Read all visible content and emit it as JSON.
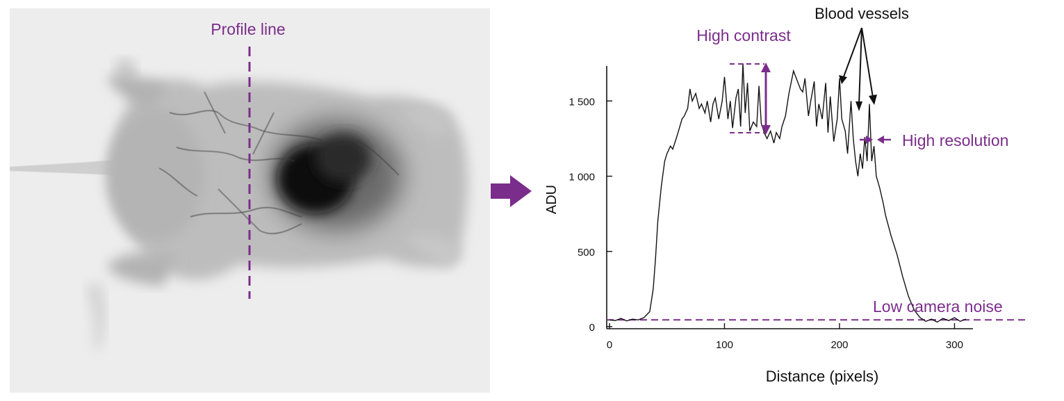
{
  "colors": {
    "accent": "#7b2d8b",
    "line": "#111111",
    "image_background": "#ededed",
    "specimen_dark": "#0e0e0e"
  },
  "image_panel": {
    "profile_label": "Profile line"
  },
  "annotations": {
    "blood_vessels": "Blood vessels",
    "high_contrast": "High contrast",
    "high_resolution": "High resolution",
    "low_noise": "Low camera noise"
  },
  "chart_data": {
    "type": "line",
    "xlabel": "Distance (pixels)",
    "ylabel": "ADU",
    "xlim": [
      0,
      310
    ],
    "ylim": [
      0,
      1700
    ],
    "x_ticks": [
      0,
      100,
      200,
      300
    ],
    "x_tick_labels": [
      "0",
      "100",
      "200",
      "300"
    ],
    "y_ticks": [
      0,
      500,
      1000,
      1500
    ],
    "y_tick_labels": [
      "0",
      "500",
      "1 000",
      "1 500"
    ],
    "grid": false,
    "noise_floor": 45,
    "series": [
      {
        "values_x": [
          0,
          5,
          10,
          15,
          20,
          25,
          30,
          35,
          38,
          40,
          42,
          45,
          48,
          50,
          53,
          55,
          58,
          60,
          63,
          65,
          68,
          70,
          72,
          75,
          78,
          80,
          83,
          85,
          88,
          90,
          92,
          95,
          98,
          100,
          103,
          105,
          107,
          110,
          112,
          114,
          116,
          118,
          120,
          122,
          125,
          128,
          130,
          132,
          135,
          137,
          140,
          143,
          145,
          148,
          150,
          153,
          156,
          160,
          163,
          166,
          168,
          170,
          173,
          175,
          178,
          180,
          182,
          185,
          188,
          190,
          192,
          195,
          198,
          200,
          202,
          205,
          207,
          210,
          212,
          214,
          216,
          218,
          220,
          222,
          224,
          226,
          228,
          230,
          232,
          235,
          238,
          240,
          245,
          250,
          255,
          260,
          265,
          270,
          275,
          280,
          285,
          290,
          295,
          300,
          305,
          310
        ],
        "values_y": [
          45,
          40,
          55,
          38,
          50,
          45,
          60,
          100,
          250,
          450,
          700,
          930,
          1100,
          1150,
          1200,
          1180,
          1250,
          1300,
          1380,
          1400,
          1450,
          1580,
          1500,
          1550,
          1450,
          1480,
          1420,
          1500,
          1360,
          1480,
          1520,
          1380,
          1500,
          1660,
          1380,
          1500,
          1320,
          1520,
          1580,
          1330,
          1750,
          1420,
          1620,
          1300,
          1360,
          1330,
          1600,
          1350,
          1280,
          1250,
          1300,
          1220,
          1290,
          1250,
          1330,
          1400,
          1550,
          1700,
          1640,
          1580,
          1560,
          1650,
          1400,
          1500,
          1630,
          1330,
          1480,
          1380,
          1620,
          1290,
          1530,
          1230,
          1380,
          1650,
          1380,
          1300,
          1150,
          1500,
          1250,
          1100,
          1000,
          1150,
          1050,
          1260,
          1100,
          1480,
          1100,
          1200,
          1000,
          920,
          820,
          740,
          600,
          480,
          330,
          200,
          110,
          60,
          35,
          50,
          30,
          55,
          40,
          60,
          35,
          50
        ]
      }
    ]
  }
}
